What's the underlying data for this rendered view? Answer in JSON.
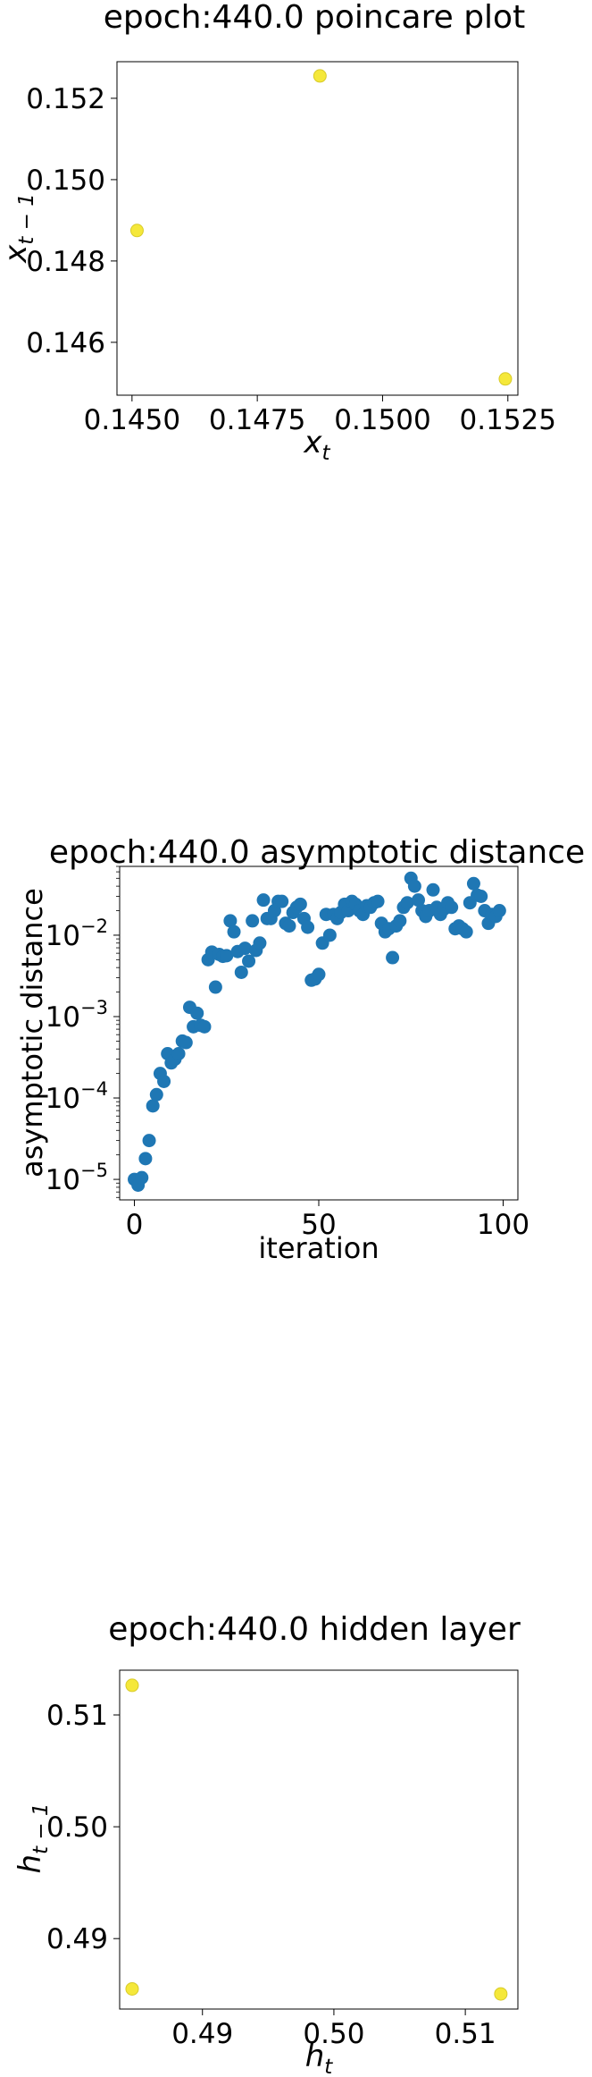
{
  "chart_data": [
    {
      "type": "scatter",
      "title": "epoch:440.0 poincare plot",
      "xlabel": "x",
      "xlabel_sub": "t",
      "ylabel": "x",
      "ylabel_sub": "t − 1",
      "xlim": [
        0.1447,
        0.1527
      ],
      "ylim": [
        0.1447,
        0.1529
      ],
      "xticks": [
        0.145,
        0.1475,
        0.15,
        0.1525
      ],
      "xtick_labels": [
        "0.1450",
        "0.1475",
        "0.1500",
        "0.1525"
      ],
      "yticks": [
        0.146,
        0.148,
        0.15,
        0.152
      ],
      "ytick_labels": [
        "0.146",
        "0.148",
        "0.150",
        "0.152"
      ],
      "grid": false,
      "point_color": "#f5e83a",
      "point_edge": "#d8cb2a",
      "points": [
        {
          "x": 0.1451,
          "y": 0.14875
        },
        {
          "x": 0.14875,
          "y": 0.15255
        },
        {
          "x": 0.15245,
          "y": 0.1451
        }
      ]
    },
    {
      "type": "scatter",
      "title": "epoch:440.0 asymptotic distance",
      "xlabel": "iteration",
      "ylabel": "asymptotic distance",
      "yscale": "log",
      "xlim": [
        -4,
        104
      ],
      "ylim": [
        5.6e-06,
        0.07
      ],
      "xticks": [
        0,
        50,
        100
      ],
      "xtick_labels": [
        "0",
        "50",
        "100"
      ],
      "yticks": [
        1e-05,
        0.0001,
        0.001,
        0.01
      ],
      "ytick_labels": [
        {
          "base": "10",
          "exp": "−5"
        },
        {
          "base": "10",
          "exp": "−4"
        },
        {
          "base": "10",
          "exp": "−3"
        },
        {
          "base": "10",
          "exp": "−2"
        }
      ],
      "grid": false,
      "point_color": "#1f77b4",
      "x": [
        0,
        1,
        2,
        3,
        4,
        5,
        6,
        7,
        8,
        9,
        10,
        11,
        12,
        13,
        14,
        15,
        16,
        17,
        18,
        19,
        20,
        21,
        22,
        23,
        24,
        25,
        26,
        27,
        28,
        29,
        30,
        31,
        32,
        33,
        34,
        35,
        36,
        37,
        38,
        39,
        40,
        41,
        42,
        43,
        44,
        45,
        46,
        47,
        48,
        49,
        50,
        51,
        52,
        53,
        54,
        55,
        56,
        57,
        58,
        59,
        60,
        61,
        62,
        63,
        64,
        65,
        66,
        67,
        68,
        69,
        70,
        71,
        72,
        73,
        74,
        75,
        76,
        77,
        78,
        79,
        80,
        81,
        82,
        83,
        84,
        85,
        86,
        87,
        88,
        89,
        90,
        91,
        92,
        93,
        94,
        95,
        96,
        97,
        98,
        99
      ],
      "y": [
        1e-05,
        8.5e-06,
        1.05e-05,
        1.8e-05,
        3e-05,
        8e-05,
        0.00011,
        0.0002,
        0.00016,
        0.00035,
        0.00027,
        0.0003,
        0.00035,
        0.0005,
        0.00048,
        0.0013,
        0.00075,
        0.0011,
        0.00078,
        0.00075,
        0.005,
        0.0062,
        0.0023,
        0.0058,
        0.0055,
        0.0056,
        0.015,
        0.011,
        0.0063,
        0.0035,
        0.0069,
        0.0048,
        0.015,
        0.0065,
        0.008,
        0.027,
        0.016,
        0.016,
        0.02,
        0.026,
        0.026,
        0.014,
        0.013,
        0.019,
        0.022,
        0.024,
        0.016,
        0.0125,
        0.0028,
        0.0029,
        0.0033,
        0.008,
        0.018,
        0.01,
        0.018,
        0.016,
        0.019,
        0.024,
        0.02,
        0.026,
        0.024,
        0.02,
        0.018,
        0.023,
        0.022,
        0.025,
        0.026,
        0.014,
        0.011,
        0.012,
        0.0053,
        0.013,
        0.015,
        0.022,
        0.025,
        0.05,
        0.04,
        0.027,
        0.02,
        0.017,
        0.02,
        0.036,
        0.022,
        0.018,
        0.021,
        0.025,
        0.022,
        0.012,
        0.013,
        0.012,
        0.011,
        0.025,
        0.043,
        0.031,
        0.03,
        0.02,
        0.014,
        0.018,
        0.017,
        0.02
      ]
    },
    {
      "type": "scatter",
      "title": "epoch:440.0 hidden layer",
      "xlabel": "h",
      "xlabel_sub": "t",
      "ylabel": "h",
      "ylabel_sub": "t − 1",
      "xlim": [
        0.4837,
        0.514
      ],
      "ylim": [
        0.4837,
        0.514
      ],
      "xticks": [
        0.49,
        0.5,
        0.51
      ],
      "xtick_labels": [
        "0.49",
        "0.50",
        "0.51"
      ],
      "yticks": [
        0.49,
        0.5,
        0.51
      ],
      "ytick_labels": [
        "0.49",
        "0.50",
        "0.51"
      ],
      "grid": false,
      "point_color": "#f5e83a",
      "point_edge": "#d8cb2a",
      "points": [
        {
          "x": 0.48465,
          "y": 0.51265
        },
        {
          "x": 0.48465,
          "y": 0.4855
        },
        {
          "x": 0.5127,
          "y": 0.48505
        }
      ]
    }
  ]
}
